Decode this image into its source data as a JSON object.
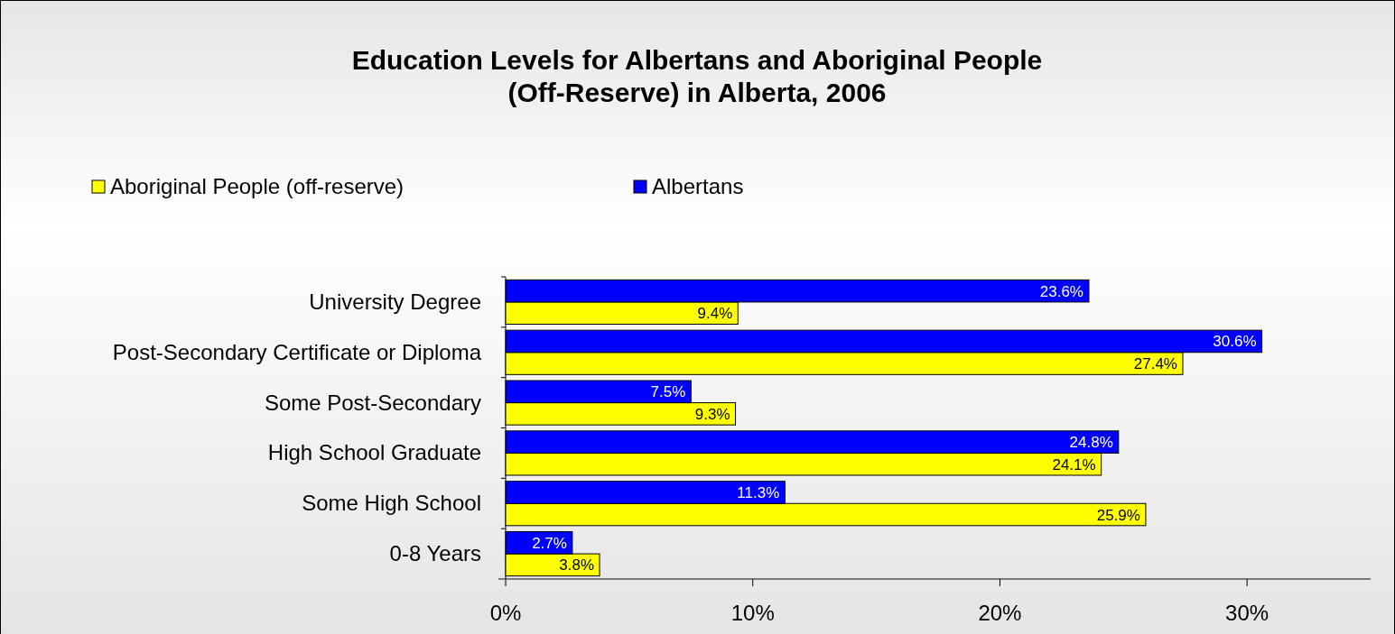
{
  "chart_data": {
    "type": "bar",
    "orientation": "horizontal",
    "title": "Education Levels for Albertans and Aboriginal People\n(Off-Reserve) in Alberta, 2006",
    "categories": [
      "University Degree",
      "Post-Secondary Certificate or Diploma",
      "Some Post-Secondary",
      "High School Graduate",
      "Some High School",
      "0-8 Years"
    ],
    "series": [
      {
        "name": "Aboriginal People (off-reserve)",
        "color": "#ffff00",
        "values": [
          9.4,
          27.4,
          9.3,
          24.1,
          25.9,
          3.8
        ],
        "value_labels": [
          "9.4%",
          "27.4%",
          "9.3%",
          "24.1%",
          "25.9%",
          "3.8%"
        ]
      },
      {
        "name": "Albertans",
        "color": "#0000ff",
        "values": [
          23.6,
          30.6,
          7.5,
          24.8,
          11.3,
          2.7
        ],
        "value_labels": [
          "23.6%",
          "30.6%",
          "7.5%",
          "24.8%",
          "11.3%",
          "2.7%"
        ]
      }
    ],
    "xlim": [
      0,
      35
    ],
    "xticks": [
      {
        "value": 0,
        "label": "0%"
      },
      {
        "value": 10,
        "label": "10%"
      },
      {
        "value": 20,
        "label": "20%"
      },
      {
        "value": 30,
        "label": "30%"
      }
    ],
    "grid": false,
    "legend": "top left"
  }
}
